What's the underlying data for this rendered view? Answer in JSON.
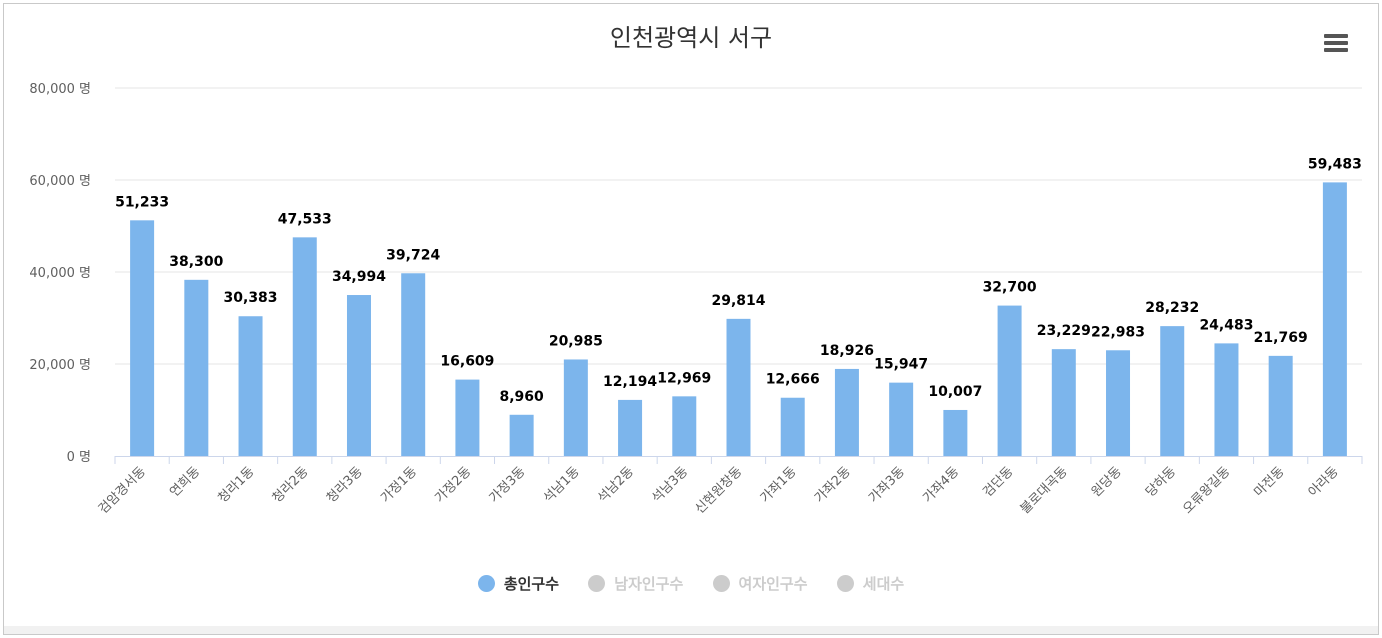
{
  "title": "인천광역시 서구",
  "menu_icon": "hamburger-menu-icon",
  "colors": {
    "active_series": "#7cb5ec",
    "inactive": "#cccccc",
    "grid": "#e6e6e6",
    "axis_line": "#ccd6eb"
  },
  "legend": [
    {
      "label": "총인구수",
      "active": true
    },
    {
      "label": "남자인구수",
      "active": false
    },
    {
      "label": "여자인구수",
      "active": false
    },
    {
      "label": "세대수",
      "active": false
    }
  ],
  "chart_data": {
    "type": "bar",
    "title": "인천광역시 서구",
    "ylim": [
      0,
      80000
    ],
    "yticks": [
      {
        "value": 0,
        "label": "0 명"
      },
      {
        "value": 20000,
        "label": "20,000 명"
      },
      {
        "value": 40000,
        "label": "40,000 명"
      },
      {
        "value": 60000,
        "label": "60,000 명"
      },
      {
        "value": 80000,
        "label": "80,000 명"
      }
    ],
    "grid": true,
    "legend_position": "bottom",
    "categories": [
      "검암경서동",
      "연희동",
      "청라1동",
      "청라2동",
      "청라3동",
      "가정1동",
      "가정2동",
      "가정3동",
      "석남1동",
      "석남2동",
      "석남3동",
      "신현원창동",
      "가좌1동",
      "가좌2동",
      "가좌3동",
      "가좌4동",
      "검단동",
      "불로대곡동",
      "원당동",
      "당하동",
      "오류왕길동",
      "마전동",
      "아라동"
    ],
    "series": [
      {
        "name": "총인구수",
        "values": [
          51233,
          38300,
          30383,
          47533,
          34994,
          39724,
          16609,
          8960,
          20985,
          12194,
          12969,
          29814,
          12666,
          18926,
          15947,
          10007,
          32700,
          23229,
          22983,
          28232,
          24483,
          21769,
          59483
        ],
        "labels": [
          "51,233",
          "38,300",
          "30,383",
          "47,533",
          "34,994",
          "39,724",
          "16,609",
          "8,960",
          "20,985",
          "12,194",
          "12,969",
          "29,814",
          "12,666",
          "18,926",
          "15,947",
          "10,007",
          "32,700",
          "23,229",
          "22,983",
          "28,232",
          "24,483",
          "21,769",
          "59,483"
        ]
      }
    ]
  }
}
